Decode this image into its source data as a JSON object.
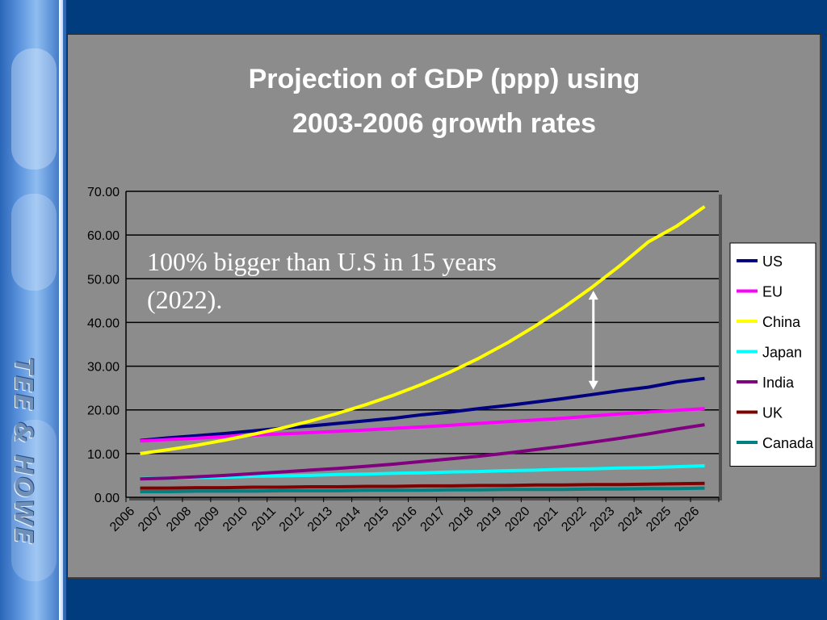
{
  "slide": {
    "brand_text": "TEE & HOWE",
    "colors": {
      "background": "#003c7e",
      "plot_bg": "#8c8c8c",
      "banner": "#5d95de"
    }
  },
  "chart_data": {
    "type": "line",
    "title_lines": [
      "Projection of GDP (ppp) using",
      "2003-2006 growth rates"
    ],
    "xlabel": "",
    "ylabel": "",
    "x": [
      "2006",
      "2007",
      "2008",
      "2009",
      "2010",
      "2011",
      "2012",
      "2013",
      "2014",
      "2015",
      "2016",
      "2017",
      "2018",
      "2019",
      "2020",
      "2021",
      "2022",
      "2023",
      "2024",
      "2025",
      "2026"
    ],
    "ylim": [
      0,
      70
    ],
    "yticks": [
      "0.00",
      "10.00",
      "20.00",
      "30.00",
      "40.00",
      "50.00",
      "60.00",
      "70.00"
    ],
    "grid": true,
    "legend_position": "right",
    "annotation": {
      "lines": [
        "100% bigger than U.S in 15 years",
        "(2022)."
      ],
      "arrow_year": "2022"
    },
    "series": [
      {
        "name": "US",
        "color": "#000080",
        "values": [
          13.0,
          13.6,
          14.1,
          14.6,
          15.2,
          15.8,
          16.3,
          16.9,
          17.5,
          18.1,
          18.9,
          19.5,
          20.3,
          21.0,
          21.8,
          22.6,
          23.5,
          24.4,
          25.2,
          26.4,
          27.2
        ]
      },
      {
        "name": "EU",
        "color": "#ff00ff",
        "values": [
          12.9,
          13.2,
          13.5,
          13.9,
          14.2,
          14.5,
          14.8,
          15.1,
          15.4,
          15.8,
          16.1,
          16.5,
          16.9,
          17.3,
          17.7,
          18.1,
          18.6,
          19.1,
          19.5,
          19.9,
          20.3
        ]
      },
      {
        "name": "China",
        "color": "#ffff00",
        "values": [
          10.0,
          10.9,
          11.9,
          13.1,
          14.4,
          15.8,
          17.4,
          19.2,
          21.2,
          23.4,
          25.9,
          28.7,
          31.8,
          35.3,
          39.2,
          43.4,
          48.0,
          53.0,
          58.4,
          62.0,
          66.5
        ]
      },
      {
        "name": "Japan",
        "color": "#00ffff",
        "values": [
          4.3,
          4.4,
          4.5,
          4.6,
          4.8,
          4.9,
          5.0,
          5.2,
          5.3,
          5.5,
          5.6,
          5.8,
          5.9,
          6.1,
          6.2,
          6.4,
          6.5,
          6.7,
          6.8,
          7.0,
          7.2
        ]
      },
      {
        "name": "India",
        "color": "#800080",
        "values": [
          4.2,
          4.4,
          4.7,
          5.0,
          5.4,
          5.8,
          6.2,
          6.6,
          7.1,
          7.6,
          8.2,
          8.8,
          9.4,
          10.1,
          10.9,
          11.7,
          12.6,
          13.5,
          14.5,
          15.6,
          16.6
        ]
      },
      {
        "name": "UK",
        "color": "#800000",
        "values": [
          2.1,
          2.1,
          2.2,
          2.2,
          2.3,
          2.3,
          2.4,
          2.4,
          2.5,
          2.5,
          2.6,
          2.6,
          2.7,
          2.7,
          2.8,
          2.8,
          2.9,
          2.9,
          3.0,
          3.1,
          3.2
        ]
      },
      {
        "name": "Canada",
        "color": "#008080",
        "values": [
          1.3,
          1.3,
          1.4,
          1.4,
          1.4,
          1.5,
          1.5,
          1.5,
          1.6,
          1.6,
          1.6,
          1.7,
          1.7,
          1.8,
          1.8,
          1.8,
          1.9,
          1.9,
          2.0,
          2.0,
          2.1
        ]
      }
    ]
  }
}
